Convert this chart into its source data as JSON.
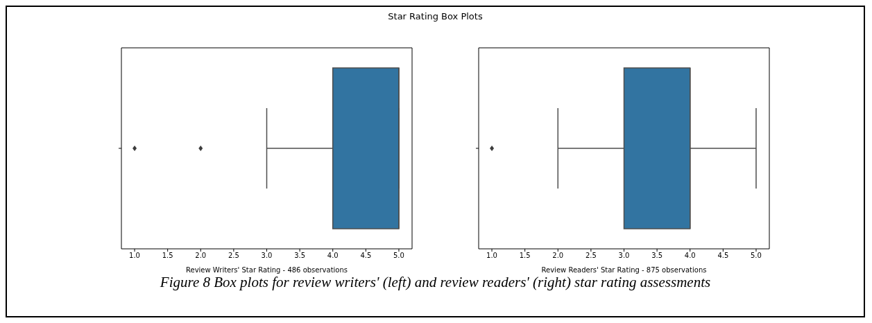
{
  "chart_data": [
    {
      "type": "box",
      "title": "Star Rating Box Plots",
      "orientation": "horizontal",
      "categories": [
        null
      ],
      "color": "#3274a1",
      "marker": "diamond",
      "xlabel": "Review Writers' Star Rating - 486 observations",
      "xlim": [
        0.8,
        5.2
      ],
      "xticks": [
        {
          "value": 1,
          "label": "1.0"
        },
        {
          "value": 1.5,
          "label": "1.5"
        },
        {
          "value": 2,
          "label": "2.0"
        },
        {
          "value": 2.5,
          "label": "2.5"
        },
        {
          "value": 3,
          "label": "3.0"
        },
        {
          "value": 3.5,
          "label": "3.5"
        },
        {
          "value": 4,
          "label": "4.0"
        },
        {
          "value": 4.5,
          "label": "4.5"
        },
        {
          "value": 5,
          "label": "5.0"
        }
      ],
      "boxes": [
        {
          "low": 3,
          "q1": 4,
          "median": 5,
          "q3": 5,
          "high": 5,
          "outliers": [
            1,
            2
          ]
        }
      ]
    },
    {
      "type": "box",
      "orientation": "horizontal",
      "categories": [
        null
      ],
      "color": "#3274a1",
      "marker": "diamond",
      "xlabel": "Review Readers' Star Rating - 875 observations",
      "xlim": [
        0.8,
        5.2
      ],
      "xticks": [
        {
          "value": 1,
          "label": "1.0"
        },
        {
          "value": 1.5,
          "label": "1.5"
        },
        {
          "value": 2,
          "label": "2.0"
        },
        {
          "value": 2.5,
          "label": "2.5"
        },
        {
          "value": 3,
          "label": "3.0"
        },
        {
          "value": 3.5,
          "label": "3.5"
        },
        {
          "value": 4,
          "label": "4.0"
        },
        {
          "value": 4.5,
          "label": "4.5"
        },
        {
          "value": 5,
          "label": "5.0"
        }
      ],
      "boxes": [
        {
          "low": 2,
          "q1": 3,
          "median": 4,
          "q3": 4,
          "high": 5,
          "outliers": [
            1
          ]
        }
      ],
      "annotations": [
        "Figure 8 Box plots for review writers' (left) and review readers' (right) star rating assessments"
      ]
    }
  ]
}
